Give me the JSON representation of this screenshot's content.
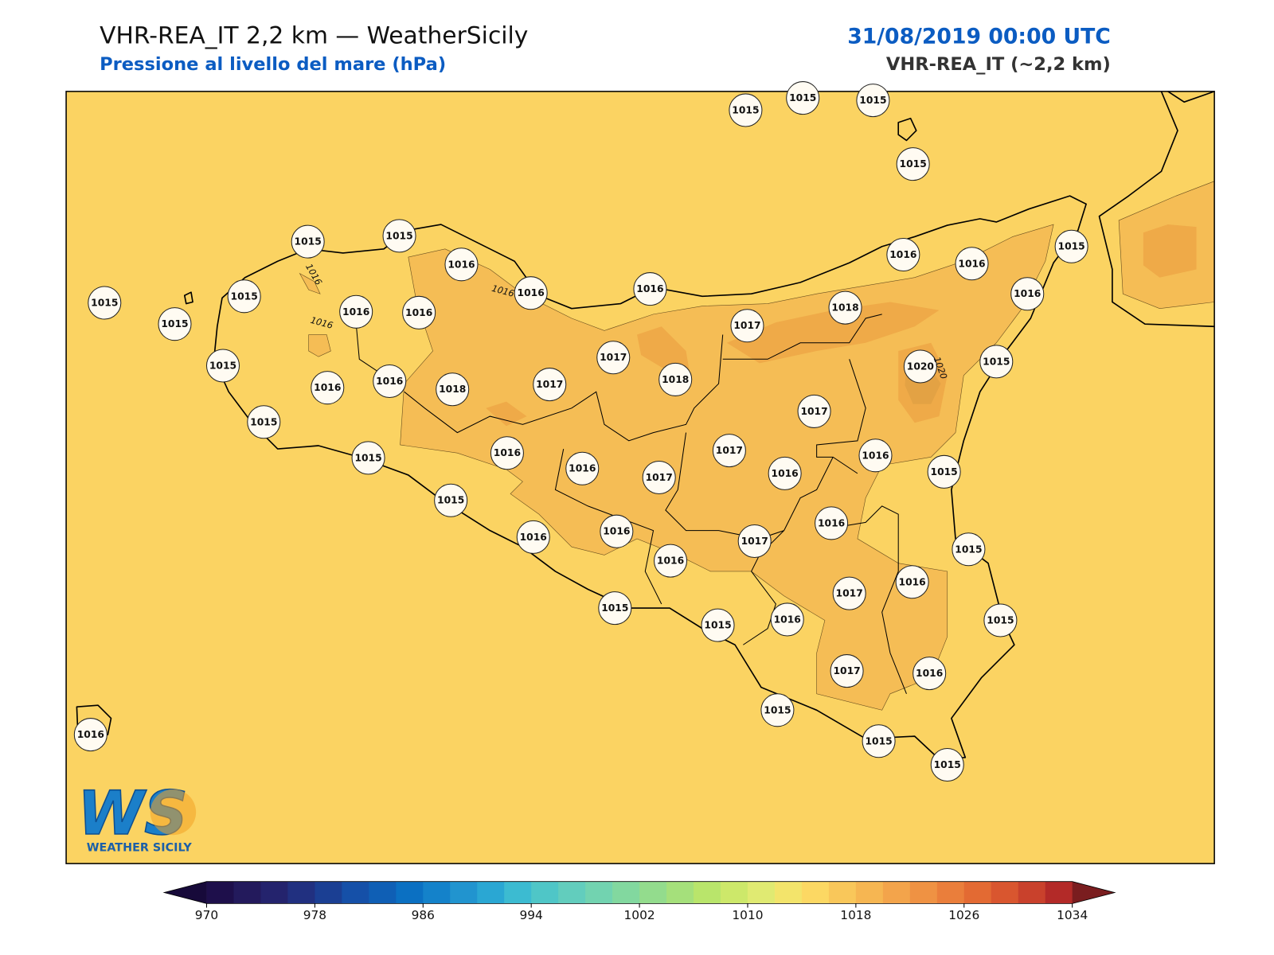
{
  "header": {
    "title": "VHR-REA_IT 2,2 km — WeatherSicily",
    "subtitle": "Pressione al livello del mare (hPa)",
    "date": "31/08/2019 00:00 UTC",
    "model": "VHR-REA_IT (~2,2 km)"
  },
  "map": {
    "background": "#fbd362",
    "shade_color": "#f5bd55",
    "core_color": "#efaa48",
    "stations": [
      1015,
      1015,
      1015,
      1015,
      1015,
      1015,
      1016,
      1016,
      1016,
      1016,
      1016,
      1015,
      1016,
      1015,
      1015,
      1015,
      1016,
      1016,
      1017,
      1018,
      1015,
      1016,
      1016,
      1018,
      1017,
      1017,
      1018,
      1020,
      1015,
      1015,
      1015,
      1016,
      1016,
      1017,
      1017,
      1016,
      1017,
      1016,
      1015,
      1015,
      1016,
      1016,
      1016,
      1017,
      1016,
      1015,
      1015,
      1015,
      1016,
      1017,
      1016,
      1015,
      1017,
      1016,
      1015,
      1015,
      1015,
      1016
    ],
    "contour_labels": [
      "1016",
      "1016",
      "1016",
      "1020"
    ]
  },
  "colorbar": {
    "range": [
      970,
      1034
    ],
    "ticks": [
      970,
      978,
      986,
      994,
      1002,
      1010,
      1018,
      1026,
      1034
    ],
    "colors": [
      "#1e0f4b",
      "#231a5c",
      "#24236d",
      "#213080",
      "#1b3f93",
      "#1550a8",
      "#0f5fb5",
      "#0b70c2",
      "#1482ca",
      "#2194cf",
      "#2aa7d3",
      "#3cbbd1",
      "#4fc6c7",
      "#62cdbd",
      "#72d3b0",
      "#82d89f",
      "#93dc8d",
      "#a5e07b",
      "#b9e56b",
      "#cde86a",
      "#e0ea72",
      "#f3e46b",
      "#fcd863",
      "#f9c75a",
      "#f6b652",
      "#f3a44b",
      "#ef9243",
      "#ea7e3b",
      "#e36a33",
      "#d9562f",
      "#c9412c",
      "#b32a28"
    ],
    "extend_colors": [
      "#170a3a",
      "#7a1d1f"
    ]
  },
  "logo": {
    "mark": "WS",
    "text": "WEATHER SICILY"
  }
}
